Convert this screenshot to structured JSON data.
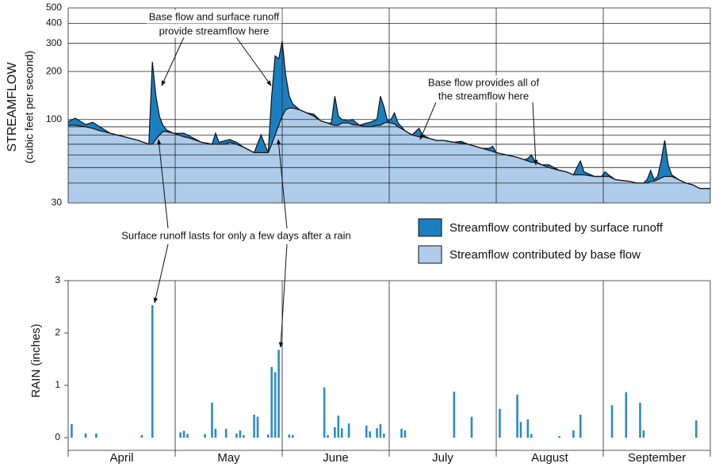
{
  "chart_data": [
    {
      "type": "area",
      "ylabel": "STREAMFLOW",
      "ylabel_sub": "(cubic feet per second)",
      "log_y": true,
      "stacked": true,
      "xlim": [
        0,
        183
      ],
      "ylim": [
        30,
        500
      ],
      "yticks": [
        30,
        100,
        200,
        300,
        400,
        500
      ],
      "minor_yticks": [
        40,
        50,
        60,
        70,
        80,
        90
      ],
      "grid": true,
      "x": [
        0,
        2,
        5,
        7,
        9,
        12,
        16,
        20,
        23,
        24,
        25,
        26,
        27,
        28,
        30,
        33,
        35,
        38,
        41,
        42,
        43,
        45,
        46,
        48,
        50,
        53,
        55,
        56,
        57,
        58,
        59,
        60,
        61,
        62,
        63,
        64,
        66,
        68,
        70,
        72,
        74,
        75,
        76,
        77,
        78,
        80,
        81,
        83,
        85,
        86,
        88,
        89,
        90,
        91,
        92,
        93,
        94,
        96,
        98,
        100,
        101,
        103,
        105,
        107,
        110,
        112,
        114,
        116,
        118,
        120,
        121,
        122,
        125,
        128,
        130,
        131,
        132,
        133,
        135,
        137,
        140,
        142,
        144,
        145,
        146,
        147,
        150,
        152,
        153,
        154,
        156,
        160,
        162,
        164,
        165,
        166,
        167,
        168,
        169,
        170,
        171,
        172,
        174,
        176,
        178,
        180,
        183
      ],
      "series": [
        {
          "name": "Streamflow contributed by base flow",
          "color": "#aecbe9",
          "values": [
            92,
            92,
            90,
            88,
            85,
            82,
            78,
            74,
            70,
            70,
            75,
            80,
            84,
            84,
            82,
            78,
            76,
            72,
            70,
            70,
            70,
            70,
            72,
            70,
            67,
            62,
            62,
            62,
            62,
            70,
            80,
            92,
            105,
            115,
            118,
            118,
            115,
            110,
            105,
            98,
            95,
            93,
            92,
            92,
            95,
            95,
            93,
            92,
            90,
            90,
            92,
            92,
            95,
            96,
            95,
            94,
            90,
            85,
            80,
            78,
            78,
            76,
            74,
            74,
            72,
            71,
            70,
            68,
            66,
            64,
            63,
            62,
            60,
            58,
            56,
            55,
            54,
            54,
            52,
            50,
            48,
            47,
            45,
            45,
            45,
            45,
            44,
            44,
            44,
            44,
            42,
            41,
            40,
            40,
            40,
            41,
            41,
            42,
            43,
            44,
            44,
            44,
            42,
            40,
            39,
            37,
            37
          ]
        },
        {
          "name": "Streamflow contributed by surface runoff",
          "color": "#1a7fc1",
          "values": [
            5,
            10,
            3,
            8,
            5,
            0,
            0,
            0,
            0,
            160,
            65,
            25,
            8,
            2,
            0,
            4,
            2,
            0,
            0,
            12,
            2,
            4,
            3,
            2,
            0,
            0,
            18,
            8,
            0,
            70,
            170,
            148,
            205,
            75,
            22,
            7,
            0,
            0,
            3,
            0,
            0,
            2,
            48,
            13,
            5,
            3,
            7,
            0,
            5,
            6,
            8,
            48,
            25,
            2,
            5,
            16,
            5,
            0,
            0,
            10,
            2,
            0,
            0,
            0,
            0,
            2,
            0,
            0,
            0,
            2,
            5,
            0,
            0,
            0,
            0,
            2,
            6,
            1,
            0,
            2,
            0,
            0,
            0,
            5,
            10,
            2,
            0,
            0,
            3,
            1,
            0,
            0,
            0,
            0,
            2,
            7,
            1,
            2,
            12,
            30,
            8,
            1,
            0,
            0,
            0,
            0,
            0
          ]
        }
      ],
      "annotations": [
        {
          "lines": [
            "Base flow and surface runoff",
            "provide streamflow here"
          ]
        },
        {
          "lines": [
            "Base flow provides all of",
            "the streamflow here"
          ]
        },
        {
          "lines": [
            "Surface runoff lasts for only a few days after a rain"
          ]
        }
      ]
    },
    {
      "type": "bar",
      "ylabel": "RAIN (inches)",
      "categories": [
        "April",
        "May",
        "June",
        "July",
        "August",
        "September"
      ],
      "xlim": [
        0,
        183
      ],
      "ylim": [
        0,
        3
      ],
      "yticks": [
        0,
        1,
        2,
        3
      ],
      "color": "#2b8cc4",
      "x": [
        1,
        5,
        8,
        21,
        24,
        32,
        33,
        34,
        39,
        41,
        42,
        45,
        48,
        49,
        50,
        53,
        54,
        57,
        58,
        59,
        60,
        63,
        64,
        73,
        74,
        76,
        77,
        78,
        80,
        85,
        86,
        88,
        89,
        90,
        95,
        96,
        110,
        115,
        123,
        128,
        129,
        131,
        132,
        140,
        144,
        146,
        155,
        159,
        163,
        164,
        179
      ],
      "values": [
        0.26,
        0.08,
        0.08,
        0.05,
        2.53,
        0.1,
        0.13,
        0.07,
        0.07,
        0.67,
        0.17,
        0.17,
        0.08,
        0.14,
        0.05,
        0.44,
        0.4,
        0.06,
        1.35,
        1.25,
        1.68,
        0.06,
        0.05,
        0.96,
        0.05,
        0.2,
        0.42,
        0.18,
        0.27,
        0.23,
        0.12,
        0.18,
        0.26,
        0.08,
        0.17,
        0.14,
        0.88,
        0.4,
        0.55,
        0.82,
        0.3,
        0.35,
        0.07,
        0.03,
        0.14,
        0.44,
        0.62,
        0.87,
        0.67,
        0.14,
        0.33
      ]
    }
  ]
}
